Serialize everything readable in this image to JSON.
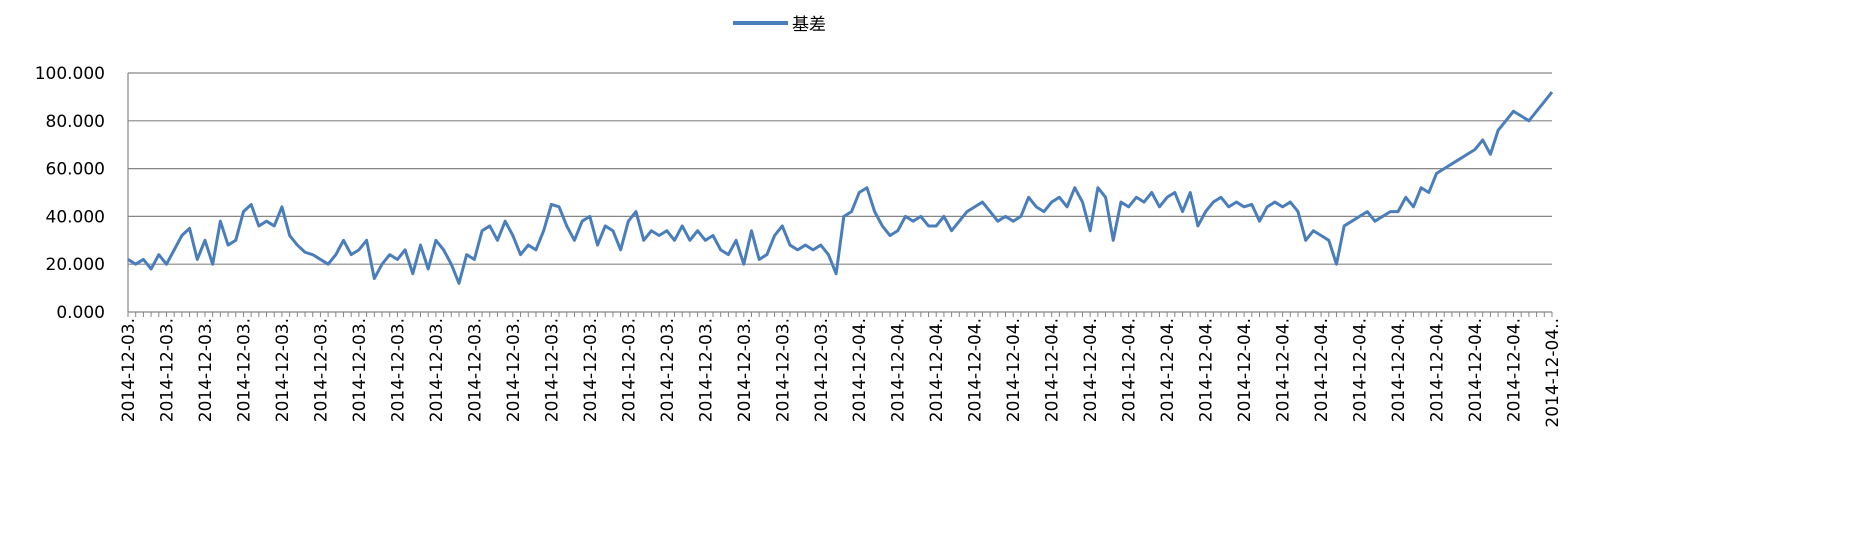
{
  "chart_data": {
    "type": "line",
    "yticks": [
      {
        "value": 0,
        "label": "0.000"
      },
      {
        "value": 20,
        "label": "20.000"
      },
      {
        "value": 40,
        "label": "40.000"
      },
      {
        "value": 60,
        "label": "60.000"
      },
      {
        "value": 80,
        "label": "80.000"
      },
      {
        "value": 100,
        "label": "100.000"
      }
    ],
    "ylim": [
      0,
      100
    ],
    "grid": true,
    "legend": "top",
    "categories": [
      "2014-12-03.",
      null,
      null,
      null,
      null,
      "2014-12-03.",
      null,
      null,
      null,
      null,
      "2014-12-03.",
      null,
      null,
      null,
      null,
      "2014-12-03.",
      null,
      null,
      null,
      null,
      "2014-12-03.",
      null,
      null,
      null,
      null,
      "2014-12-03.",
      null,
      null,
      null,
      null,
      "2014-12-03.",
      null,
      null,
      null,
      null,
      "2014-12-03.",
      null,
      null,
      null,
      null,
      "2014-12-03.",
      null,
      null,
      null,
      null,
      "2014-12-03.",
      null,
      null,
      null,
      null,
      "2014-12-03.",
      null,
      null,
      null,
      null,
      "2014-12-03.",
      null,
      null,
      null,
      null,
      "2014-12-03.",
      null,
      null,
      null,
      null,
      "2014-12-03.",
      null,
      null,
      null,
      null,
      "2014-12-03.",
      null,
      null,
      null,
      null,
      "2014-12-03.",
      null,
      null,
      null,
      null,
      "2014-12-03.",
      null,
      null,
      null,
      null,
      "2014-12-03.",
      null,
      null,
      null,
      null,
      "2014-12-03.",
      null,
      null,
      null,
      null,
      "2014-12-04.",
      null,
      null,
      null,
      null,
      "2014-12-04.",
      null,
      null,
      null,
      null,
      "2014-12-04.",
      null,
      null,
      null,
      null,
      "2014-12-04.",
      null,
      null,
      null,
      null,
      "2014-12-04.",
      null,
      null,
      null,
      null,
      "2014-12-04.",
      null,
      null,
      null,
      null,
      "2014-12-04.",
      null,
      null,
      null,
      null,
      "2014-12-04.",
      null,
      null,
      null,
      null,
      "2014-12-04.",
      null,
      null,
      null,
      null,
      "2014-12-04.",
      null,
      null,
      null,
      null,
      "2014-12-04.",
      null,
      null,
      null,
      null,
      "2014-12-04.",
      null,
      null,
      null,
      null,
      "2014-12-04.",
      null,
      null,
      null,
      null,
      "2014-12-04.",
      null,
      null,
      null,
      null,
      "2014-12-04.",
      null,
      null,
      null,
      null,
      "2014-12-04.",
      null,
      null,
      null,
      null,
      "2014-12-04.",
      null,
      null,
      null,
      null,
      "2014-12-04.",
      null,
      null,
      null,
      null,
      "2014-12-04.."
    ],
    "series": [
      {
        "name": "基差",
        "color": "#4a7ebb",
        "values": [
          22,
          20,
          22,
          18,
          24,
          20,
          26,
          32,
          35,
          22,
          30,
          20,
          38,
          28,
          30,
          42,
          45,
          36,
          38,
          36,
          44,
          32,
          28,
          25,
          24,
          22,
          20,
          24,
          30,
          24,
          26,
          30,
          14,
          20,
          24,
          22,
          26,
          16,
          28,
          18,
          30,
          26,
          20,
          12,
          24,
          22,
          34,
          36,
          30,
          38,
          32,
          24,
          28,
          26,
          34,
          45,
          44,
          36,
          30,
          38,
          40,
          28,
          36,
          34,
          26,
          38,
          42,
          30,
          34,
          32,
          34,
          30,
          36,
          30,
          34,
          30,
          32,
          26,
          24,
          30,
          20,
          34,
          22,
          24,
          32,
          36,
          28,
          26,
          28,
          26,
          28,
          24,
          16,
          40,
          42,
          50,
          52,
          42,
          36,
          32,
          34,
          40,
          38,
          40,
          36,
          36,
          40,
          34,
          38,
          42,
          44,
          46,
          42,
          38,
          40,
          38,
          40,
          48,
          44,
          42,
          46,
          48,
          44,
          52,
          46,
          34,
          52,
          48,
          30,
          46,
          44,
          48,
          46,
          50,
          44,
          48,
          50,
          42,
          50,
          36,
          42,
          46,
          48,
          44,
          46,
          44,
          45,
          38,
          44,
          46,
          44,
          46,
          42,
          30,
          34,
          32,
          30,
          20,
          36,
          38,
          40,
          42,
          38,
          40,
          42,
          42,
          48,
          44,
          52,
          50,
          58,
          60,
          62,
          64,
          66,
          68,
          72,
          66,
          76,
          80,
          84,
          82,
          80,
          84,
          88,
          92
        ]
      }
    ]
  }
}
